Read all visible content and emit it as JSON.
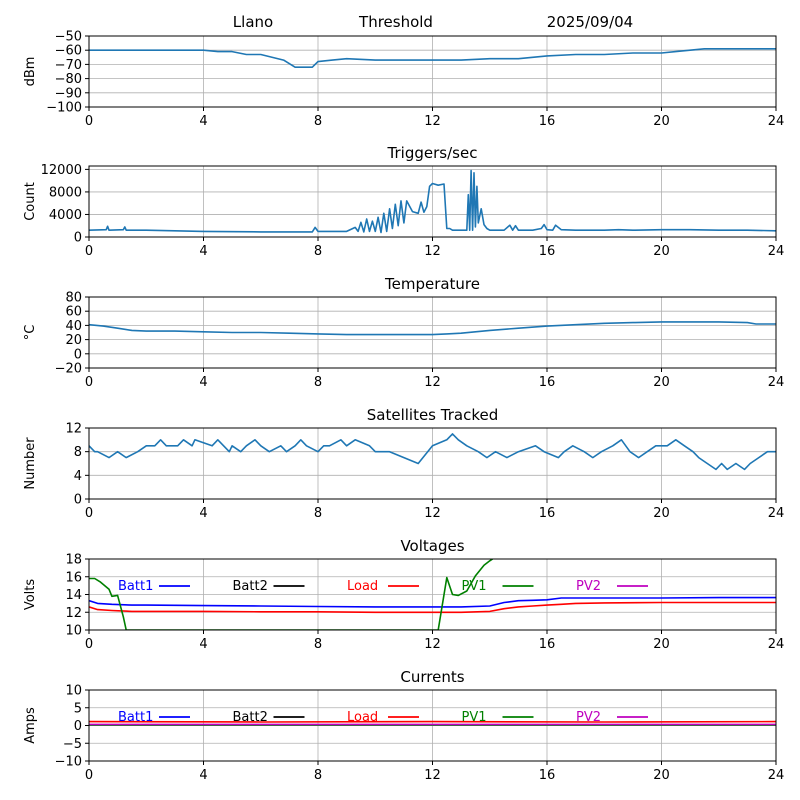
{
  "header": {
    "site": "Llano",
    "mode": "Threshold",
    "date": "2025/09/04"
  },
  "colors": {
    "default_series": "#1f77b4",
    "Batt1": "#0000ff",
    "Batt2": "#000000",
    "Load": "#ff0000",
    "PV1": "#008000",
    "PV2": "#bf00bf"
  },
  "chart_data": [
    {
      "type": "line",
      "title": "",
      "xlabel": "",
      "ylabel": "dBm",
      "xlim": [
        0,
        24
      ],
      "ylim": [
        -100,
        -50
      ],
      "xticks": [
        0,
        4,
        8,
        12,
        16,
        20,
        24
      ],
      "yticks": [
        -100,
        -90,
        -80,
        -70,
        -60,
        -50
      ],
      "grid": true,
      "series": [
        {
          "x": [
            0,
            4,
            4.5,
            5,
            5.5,
            6,
            6.8,
            7.2,
            7.8,
            8,
            8.5,
            9,
            10,
            11,
            12,
            13,
            14,
            15,
            15.5,
            16,
            17,
            18,
            19,
            20,
            20.5,
            21,
            21.5,
            22,
            23,
            24
          ],
          "values": [
            -60,
            -60,
            -61,
            -61,
            -63,
            -63,
            -67,
            -72,
            -72,
            -68,
            -67,
            -66,
            -67,
            -67,
            -67,
            -67,
            -66,
            -66,
            -65,
            -64,
            -63,
            -63,
            -62,
            -62,
            -61,
            -60,
            -59,
            -59,
            -59,
            -59
          ]
        }
      ]
    },
    {
      "type": "line",
      "title": "Triggers/sec",
      "xlabel": "",
      "ylabel": "Count",
      "xlim": [
        0,
        24
      ],
      "ylim": [
        0,
        12600
      ],
      "xticks": [
        0,
        4,
        8,
        12,
        16,
        20,
        24
      ],
      "yticks": [
        0,
        4000,
        8000,
        12000
      ],
      "grid": true,
      "series": [
        {
          "x": [
            0,
            0.6,
            0.65,
            0.7,
            1.2,
            1.25,
            1.3,
            2,
            4,
            6,
            7.8,
            7.9,
            8,
            9,
            9.3,
            9.4,
            9.5,
            9.6,
            9.7,
            9.8,
            9.9,
            10,
            10.1,
            10.2,
            10.3,
            10.4,
            10.5,
            10.6,
            10.7,
            10.8,
            10.9,
            11,
            11.1,
            11.3,
            11.5,
            11.6,
            11.7,
            11.8,
            11.9,
            12,
            12.2,
            12.4,
            12.5,
            12.6,
            12.7,
            13,
            13.2,
            13.25,
            13.3,
            13.35,
            13.4,
            13.45,
            13.5,
            13.55,
            13.6,
            13.7,
            13.8,
            13.9,
            14,
            14.5,
            14.7,
            14.8,
            14.9,
            15,
            15.5,
            15.8,
            15.9,
            16,
            16.2,
            16.3,
            16.5,
            17,
            18,
            18.5,
            19,
            20,
            21,
            22,
            23,
            24
          ],
          "values": [
            1200,
            1300,
            1900,
            1200,
            1300,
            1800,
            1200,
            1200,
            1000,
            900,
            900,
            1700,
            1000,
            1000,
            1700,
            1000,
            2600,
            900,
            3200,
            1000,
            2800,
            1000,
            3500,
            800,
            4200,
            1000,
            5000,
            1500,
            5800,
            2000,
            6400,
            2500,
            6400,
            4500,
            4200,
            6200,
            4400,
            5400,
            9000,
            9500,
            9200,
            9400,
            1500,
            1500,
            1200,
            1200,
            1200,
            7500,
            1200,
            11800,
            1200,
            11400,
            1800,
            9000,
            2500,
            5000,
            2200,
            1500,
            1200,
            1200,
            2100,
            1200,
            2000,
            1200,
            1200,
            1500,
            2200,
            1300,
            1200,
            2100,
            1300,
            1200,
            1200,
            1300,
            1200,
            1300,
            1300,
            1200,
            1200,
            1100
          ]
        }
      ]
    },
    {
      "type": "line",
      "title": "Temperature",
      "xlabel": "",
      "ylabel": "°C",
      "xlim": [
        0,
        24
      ],
      "ylim": [
        -20,
        80
      ],
      "xticks": [
        0,
        4,
        8,
        12,
        16,
        20,
        24
      ],
      "yticks": [
        -20,
        0,
        20,
        40,
        60,
        80
      ],
      "grid": true,
      "series": [
        {
          "x": [
            0,
            0.5,
            1,
            1.5,
            2,
            3,
            4,
            5,
            6,
            7,
            8,
            9,
            10,
            11,
            12,
            12.5,
            13,
            13.5,
            14,
            15,
            16,
            17,
            18,
            19,
            20,
            21,
            22,
            23,
            23.3,
            24
          ],
          "values": [
            41,
            39,
            36,
            33,
            32,
            32,
            31,
            30,
            30,
            29,
            28,
            27,
            27,
            27,
            27,
            28,
            29,
            31,
            33,
            36,
            39,
            41,
            43,
            44,
            45,
            45,
            45,
            44,
            42,
            42
          ]
        }
      ]
    },
    {
      "type": "line",
      "title": "Satellites Tracked",
      "xlabel": "",
      "ylabel": "Number",
      "xlim": [
        0,
        24
      ],
      "ylim": [
        0,
        12
      ],
      "xticks": [
        0,
        4,
        8,
        12,
        16,
        20,
        24
      ],
      "yticks": [
        0,
        4,
        8,
        12
      ],
      "grid": true,
      "series": [
        {
          "x": [
            0,
            0.2,
            0.3,
            0.7,
            1.0,
            1.3,
            1.7,
            2.0,
            2.3,
            2.5,
            2.7,
            3.1,
            3.3,
            3.6,
            3.7,
            4.3,
            4.5,
            4.9,
            5.0,
            5.3,
            5.5,
            5.8,
            6.0,
            6.3,
            6.7,
            6.9,
            7.2,
            7.4,
            7.6,
            8.0,
            8.2,
            8.4,
            8.8,
            9.0,
            9.3,
            9.8,
            10.0,
            10.5,
            11.0,
            11.5,
            12.0,
            12.5,
            12.7,
            12.9,
            13.2,
            13.6,
            13.9,
            14.2,
            14.6,
            15.0,
            15.6,
            15.9,
            16.4,
            16.6,
            16.9,
            17.3,
            17.6,
            17.9,
            18.3,
            18.6,
            18.9,
            19.2,
            19.5,
            19.8,
            20.2,
            20.5,
            20.8,
            21.1,
            21.3,
            21.6,
            21.9,
            22.1,
            22.3,
            22.6,
            22.9,
            23.1,
            23.4,
            23.7,
            24
          ],
          "values": [
            9,
            8,
            8,
            7,
            8,
            7,
            8,
            9,
            9,
            10,
            9,
            9,
            10,
            9,
            10,
            9,
            10,
            8,
            9,
            8,
            9,
            10,
            9,
            8,
            9,
            8,
            9,
            10,
            9,
            8,
            9,
            9,
            10,
            9,
            10,
            9,
            8,
            8,
            7,
            6,
            9,
            10,
            11,
            10,
            9,
            8,
            7,
            8,
            7,
            8,
            9,
            8,
            7,
            8,
            9,
            8,
            7,
            8,
            9,
            10,
            8,
            7,
            8,
            9,
            9,
            10,
            9,
            8,
            7,
            6,
            5,
            6,
            5,
            6,
            5,
            6,
            7,
            8,
            8
          ]
        }
      ]
    },
    {
      "type": "line",
      "title": "Voltages",
      "xlabel": "",
      "ylabel": "Volts",
      "xlim": [
        0,
        24
      ],
      "ylim": [
        10,
        18
      ],
      "xticks": [
        0,
        4,
        8,
        12,
        16,
        20,
        24
      ],
      "yticks": [
        10,
        12,
        14,
        16,
        18
      ],
      "grid": true,
      "legend": "top, horizontal",
      "series": [
        {
          "name": "Batt1",
          "x": [
            0,
            0.3,
            0.8,
            1.5,
            2,
            4,
            6,
            8,
            10,
            12,
            13,
            14,
            14.5,
            15,
            15.5,
            16,
            16.5,
            17,
            18,
            20,
            22,
            24
          ],
          "values": [
            13.3,
            13.0,
            12.9,
            12.8,
            12.8,
            12.75,
            12.7,
            12.65,
            12.6,
            12.6,
            12.6,
            12.7,
            13.1,
            13.3,
            13.35,
            13.4,
            13.6,
            13.6,
            13.6,
            13.6,
            13.65,
            13.65
          ]
        },
        {
          "name": "Batt2",
          "x": [],
          "values": []
        },
        {
          "name": "Load",
          "x": [
            0,
            0.3,
            0.8,
            1.5,
            2,
            4,
            6,
            8,
            10,
            12,
            13,
            14,
            14.5,
            15,
            15.5,
            16,
            16.5,
            17,
            18,
            20,
            22,
            24
          ],
          "values": [
            12.6,
            12.3,
            12.2,
            12.1,
            12.1,
            12.1,
            12.05,
            12.05,
            12.0,
            12.0,
            12.0,
            12.1,
            12.4,
            12.6,
            12.7,
            12.8,
            12.9,
            13.0,
            13.05,
            13.1,
            13.1,
            13.1
          ]
        },
        {
          "name": "PV1",
          "x": [
            0,
            0.2,
            0.4,
            0.7,
            0.8,
            1.0,
            1.2,
            1.3,
            12.2,
            12.5,
            12.7,
            12.9,
            13.2,
            13.5,
            13.8,
            14.0,
            14.1
          ],
          "values": [
            15.8,
            15.8,
            15.4,
            14.6,
            13.8,
            13.9,
            11.5,
            10.0,
            10.0,
            15.9,
            14.0,
            13.9,
            14.4,
            16.1,
            17.3,
            17.8,
            18.0
          ]
        },
        {
          "name": "PV2",
          "x": [],
          "values": []
        }
      ]
    },
    {
      "type": "line",
      "title": "Currents",
      "xlabel": "",
      "ylabel": "Amps",
      "xlim": [
        0,
        24
      ],
      "ylim": [
        -10,
        10
      ],
      "xticks": [
        0,
        4,
        8,
        12,
        16,
        20,
        24
      ],
      "yticks": [
        -10,
        -5,
        0,
        5,
        10
      ],
      "grid": true,
      "legend": "top, horizontal",
      "series": [
        {
          "name": "Batt1",
          "x": [
            0,
            24
          ],
          "values": [
            0.2,
            0.2
          ]
        },
        {
          "name": "Batt2",
          "x": [],
          "values": []
        },
        {
          "name": "Load",
          "x": [
            0,
            6,
            12,
            18,
            24
          ],
          "values": [
            1.1,
            1.0,
            1.1,
            1.0,
            1.1
          ]
        },
        {
          "name": "PV1",
          "x": [
            0,
            24
          ],
          "values": [
            0.1,
            0.1
          ]
        },
        {
          "name": "PV2",
          "x": [
            0,
            24
          ],
          "values": [
            0.3,
            0.3
          ]
        }
      ]
    }
  ]
}
